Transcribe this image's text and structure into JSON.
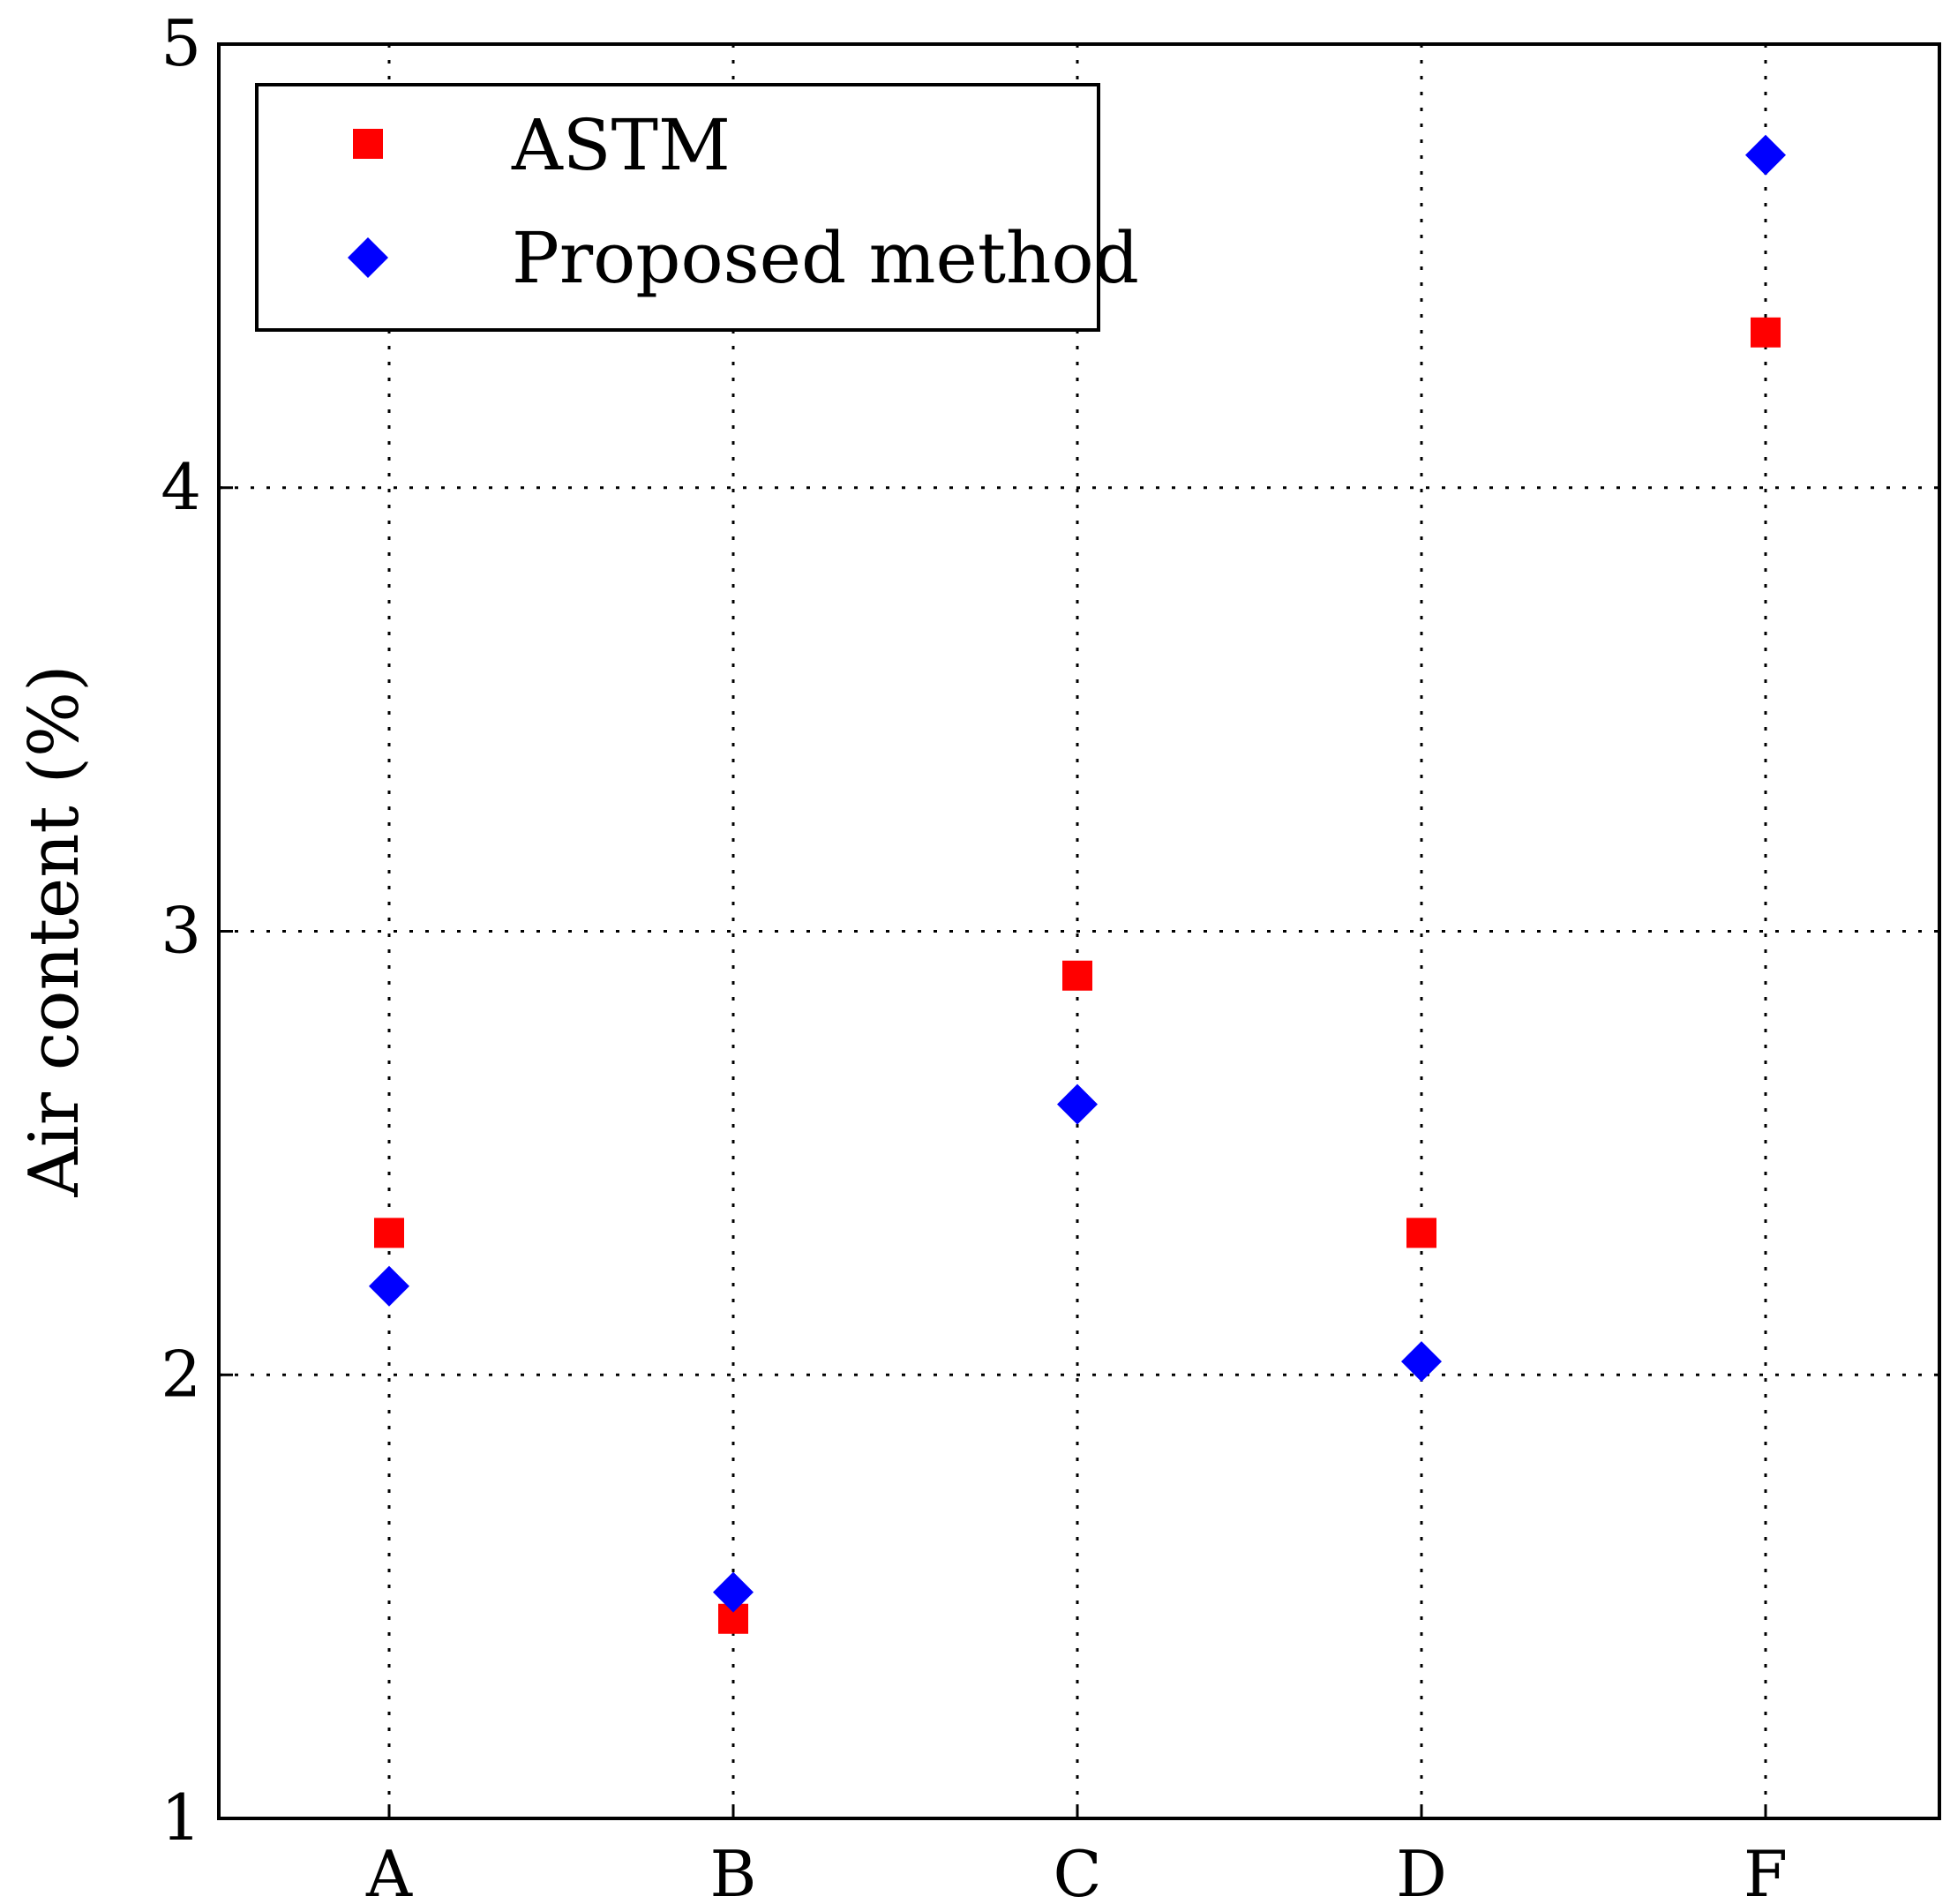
{
  "chart_data": {
    "type": "scatter",
    "title": "",
    "xlabel": "",
    "ylabel": "Air content (%)",
    "categories": [
      "A",
      "B",
      "C",
      "D",
      "F"
    ],
    "ylim": [
      1,
      5
    ],
    "yticks": [
      1,
      2,
      3,
      4,
      5
    ],
    "grid": true,
    "legend_position": "top-left",
    "series": [
      {
        "name": "ASTM",
        "marker": "square",
        "color": "#ff0000",
        "values": [
          2.32,
          1.45,
          2.9,
          2.32,
          4.35
        ]
      },
      {
        "name": "Proposed method",
        "marker": "diamond",
        "color": "#0000ff",
        "values": [
          2.2,
          1.51,
          2.61,
          2.03,
          4.75
        ]
      }
    ]
  }
}
